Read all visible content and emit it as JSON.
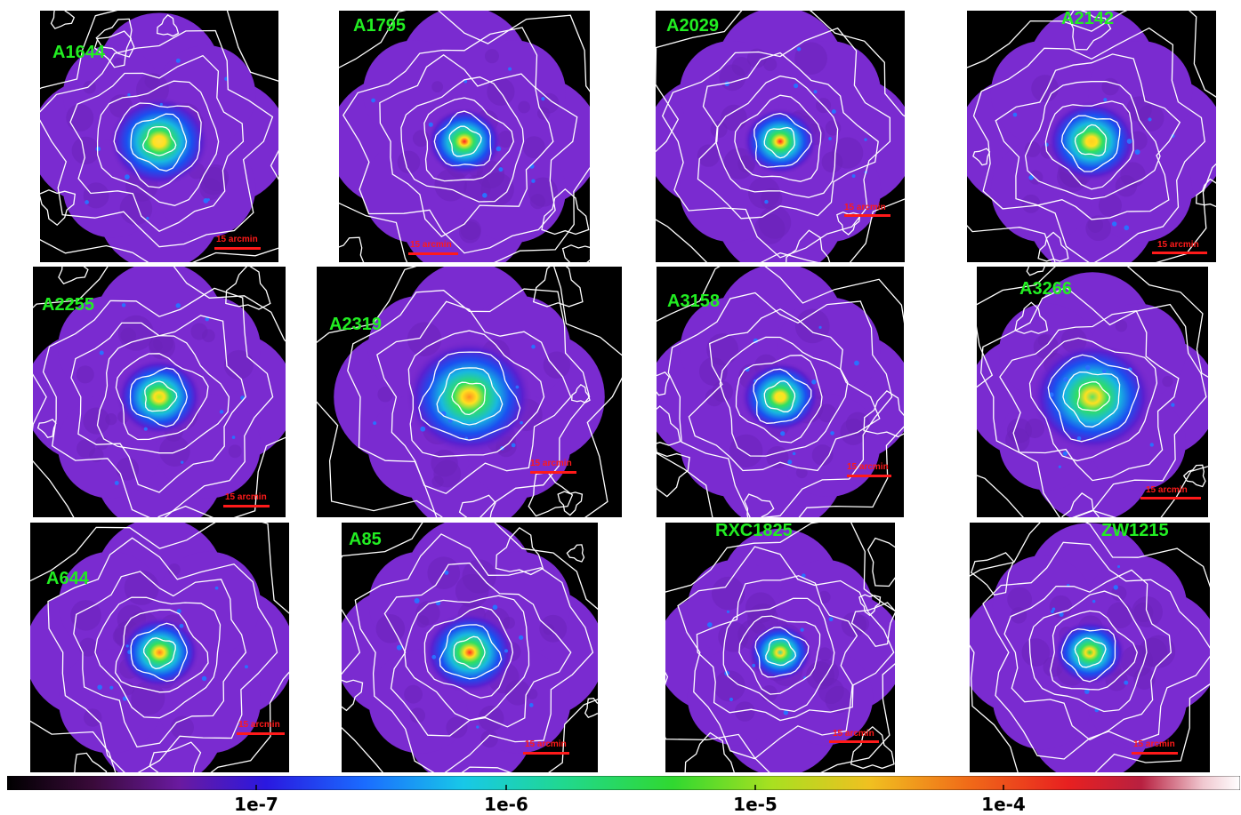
{
  "panels": [
    {
      "name": "A1644",
      "scale": "15 arcmin",
      "spread": 1.05,
      "peak": "#ffe040"
    },
    {
      "name": "A1795",
      "scale": "15 arcmin",
      "spread": 0.75,
      "peak": "#ff2020"
    },
    {
      "name": "A2029",
      "scale": "15 arcmin",
      "spread": 0.75,
      "peak": "#ff2020"
    },
    {
      "name": "A2142",
      "scale": "15 arcmin",
      "spread": 0.9,
      "peak": "#ffd020"
    },
    {
      "name": "A2255",
      "scale": "15 arcmin",
      "spread": 0.85,
      "peak": "#b6f020"
    },
    {
      "name": "A2319",
      "scale": "15 arcmin",
      "spread": 1.25,
      "peak": "#ff9020"
    },
    {
      "name": "A3158",
      "scale": "15 arcmin",
      "spread": 0.8,
      "peak": "#e8f020"
    },
    {
      "name": "A3266",
      "scale": "15 arcmin",
      "spread": 1.3,
      "peak": "#60e060"
    },
    {
      "name": "A644",
      "scale": "15 arcmin",
      "spread": 0.8,
      "peak": "#ff8020"
    },
    {
      "name": "A85",
      "scale": "15 arcmin",
      "spread": 0.9,
      "peak": "#ff3020"
    },
    {
      "name": "RXC1825",
      "scale": "15 arcmin",
      "spread": 0.7,
      "peak": "#30e0a0"
    },
    {
      "name": "ZW1215",
      "scale": "15 arcmin",
      "spread": 0.75,
      "peak": "#40e040"
    }
  ],
  "colorbar": {
    "ticks": [
      "1e-7",
      "1e-6",
      "1e-5",
      "1e-4"
    ],
    "tick_positions": [
      0.205,
      0.405,
      0.61,
      0.81
    ]
  }
}
